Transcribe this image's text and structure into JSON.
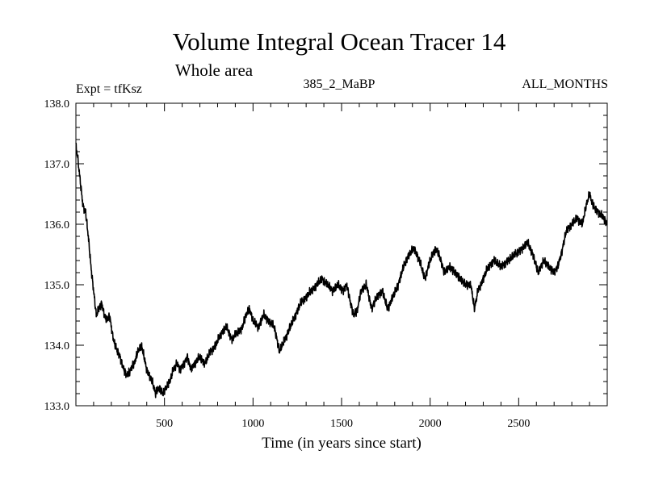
{
  "chart_data": {
    "type": "line",
    "title": "Volume Integral Ocean Tracer 14",
    "subtitle": "Whole area",
    "header_left": "Expt = tfKsz",
    "header_center": "385_2_MaBP",
    "header_right": "ALL_MONTHS",
    "xlabel": "Time (in years since start)",
    "ylabel": "",
    "xlim": [
      0,
      3000
    ],
    "ylim": [
      133.0,
      138.0
    ],
    "x_ticks": [
      {
        "value": 500,
        "label": "500"
      },
      {
        "value": 1000,
        "label": "1000"
      },
      {
        "value": 1500,
        "label": "1500"
      },
      {
        "value": 2000,
        "label": "2000"
      },
      {
        "value": 2500,
        "label": "2500"
      }
    ],
    "y_ticks": [
      {
        "value": 133.0,
        "label": "133.0"
      },
      {
        "value": 134.0,
        "label": "134.0"
      },
      {
        "value": 135.0,
        "label": "135.0"
      },
      {
        "value": 136.0,
        "label": "136.0"
      },
      {
        "value": 137.0,
        "label": "137.0"
      },
      {
        "value": 138.0,
        "label": "138.0"
      }
    ],
    "series": [
      {
        "name": "Volume Integral Ocean Tracer 14",
        "color": "#000000",
        "x": [
          0,
          10,
          25,
          40,
          55,
          70,
          85,
          100,
          115,
          130,
          145,
          160,
          175,
          190,
          205,
          220,
          235,
          250,
          270,
          290,
          310,
          330,
          350,
          370,
          385,
          400,
          415,
          430,
          450,
          470,
          490,
          510,
          530,
          550,
          570,
          590,
          610,
          630,
          650,
          670,
          700,
          730,
          760,
          790,
          820,
          850,
          880,
          910,
          940,
          960,
          980,
          1000,
          1030,
          1060,
          1090,
          1120,
          1150,
          1180,
          1210,
          1240,
          1270,
          1300,
          1330,
          1360,
          1390,
          1420,
          1450,
          1480,
          1510,
          1530,
          1550,
          1570,
          1590,
          1610,
          1640,
          1670,
          1700,
          1730,
          1760,
          1790,
          1820,
          1850,
          1880,
          1910,
          1940,
          1970,
          2000,
          2030,
          2050,
          2080,
          2110,
          2140,
          2170,
          2200,
          2230,
          2250,
          2270,
          2300,
          2330,
          2360,
          2400,
          2440,
          2480,
          2520,
          2550,
          2580,
          2610,
          2640,
          2670,
          2700,
          2720,
          2740,
          2770,
          2800,
          2830,
          2860,
          2880,
          2900,
          2920,
          2950,
          2980,
          3000
        ],
        "values": [
          137.3,
          137.1,
          136.7,
          136.3,
          136.2,
          135.8,
          135.3,
          134.9,
          134.5,
          134.6,
          134.7,
          134.5,
          134.4,
          134.5,
          134.2,
          134.0,
          133.9,
          133.8,
          133.6,
          133.5,
          133.6,
          133.7,
          133.9,
          134.0,
          133.8,
          133.6,
          133.5,
          133.4,
          133.2,
          133.3,
          133.2,
          133.3,
          133.4,
          133.6,
          133.7,
          133.6,
          133.7,
          133.8,
          133.6,
          133.7,
          133.8,
          133.7,
          133.9,
          134.0,
          134.2,
          134.3,
          134.1,
          134.2,
          134.3,
          134.5,
          134.6,
          134.4,
          134.3,
          134.5,
          134.4,
          134.3,
          133.9,
          134.1,
          134.3,
          134.5,
          134.7,
          134.8,
          134.9,
          135.0,
          135.1,
          135.0,
          134.9,
          135.0,
          134.9,
          135.0,
          134.7,
          134.5,
          134.6,
          134.9,
          135.0,
          134.6,
          134.8,
          134.9,
          134.6,
          134.8,
          135.0,
          135.3,
          135.5,
          135.6,
          135.4,
          135.1,
          135.4,
          135.6,
          135.5,
          135.2,
          135.3,
          135.2,
          135.1,
          135.0,
          135.0,
          134.6,
          134.9,
          135.1,
          135.3,
          135.4,
          135.3,
          135.4,
          135.5,
          135.6,
          135.7,
          135.5,
          135.2,
          135.4,
          135.3,
          135.2,
          135.3,
          135.5,
          135.9,
          136.0,
          136.1,
          136.0,
          136.3,
          136.5,
          136.3,
          136.2,
          136.1,
          136.0
        ]
      }
    ]
  }
}
